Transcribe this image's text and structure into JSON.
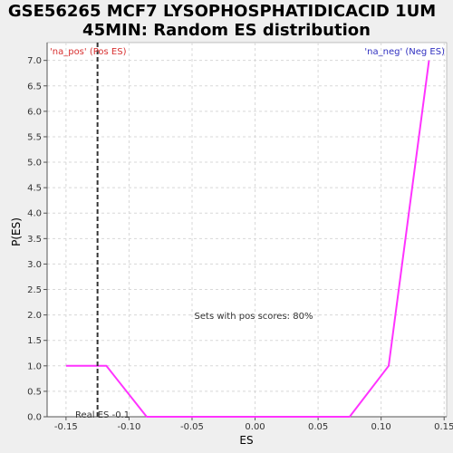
{
  "chart_data": {
    "type": "line",
    "title_line1": "GSE56265 MCF7 LYSOPHOSPHATIDICACID  1UM",
    "title_line2": "45MIN: Random ES distribution",
    "xlabel": "ES",
    "ylabel": "P(ES)",
    "xlim": [
      -0.165,
      0.152
    ],
    "ylim": [
      0,
      7.35
    ],
    "x_ticks": [
      -0.15,
      -0.1,
      -0.05,
      0.0,
      0.05,
      0.1,
      0.15
    ],
    "x_tick_labels": [
      "-0.15",
      "-0.10",
      "-0.05",
      "0.00",
      "0.05",
      "0.10",
      "0.15"
    ],
    "y_ticks": [
      0.0,
      0.5,
      1.0,
      1.5,
      2.0,
      2.5,
      3.0,
      3.5,
      4.0,
      4.5,
      5.0,
      5.5,
      6.0,
      6.5,
      7.0
    ],
    "y_tick_labels": [
      "0.0",
      "0.5",
      "1.0",
      "1.5",
      "2.0",
      "2.5",
      "3.0",
      "3.5",
      "4.0",
      "4.5",
      "5.0",
      "5.5",
      "6.0",
      "6.5",
      "7.0"
    ],
    "grid": true,
    "series": [
      {
        "color": "#ff33ff",
        "x": [
          -0.15,
          -0.118,
          -0.086,
          0.075,
          0.106,
          0.138
        ],
        "y": [
          1.0,
          1.0,
          0.0,
          0.0,
          1.0,
          7.0
        ]
      }
    ],
    "real_es": -0.125,
    "real_es_label": "Real ES -0.1",
    "pos_label": "'na_pos' (Pos ES)",
    "neg_label": "'na_neg' (Neg ES)",
    "center_annotation": "Sets with pos scores: 80%",
    "colors": {
      "pos_label": "#d83030",
      "neg_label": "#3030c0",
      "line": "#ff33ff",
      "real_es_line": "#333333",
      "grid": "#d8d8d8"
    }
  }
}
